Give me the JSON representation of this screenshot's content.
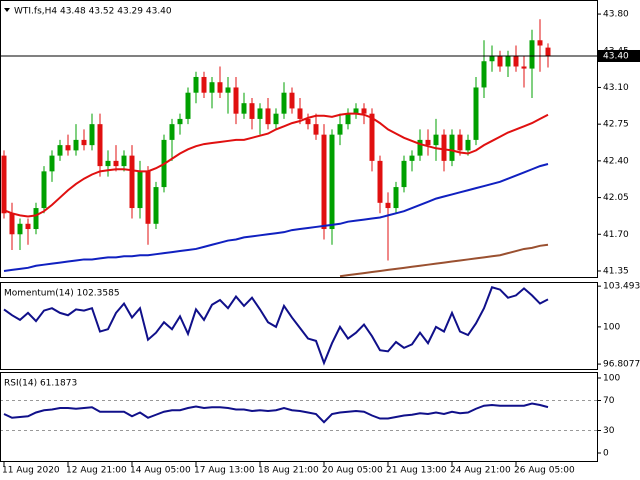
{
  "chart_data": [
    {
      "type": "candlestick",
      "title": "WTI.fs,H4  43.48 43.52 43.29 43.40",
      "up_color": "#00a000",
      "down_color": "#e01010",
      "open": [
        42.45,
        41.9,
        41.7,
        41.8,
        41.75,
        41.95,
        42.3,
        42.45,
        42.55,
        42.5,
        42.6,
        42.55,
        42.75,
        42.35,
        42.4,
        42.35,
        42.45,
        41.95,
        42.3,
        41.8,
        42.15,
        42.6,
        42.75,
        42.8,
        43.05,
        43.2,
        43.05,
        43.15,
        43.05,
        43.1,
        42.85,
        42.95,
        42.8,
        42.9,
        42.75,
        42.85,
        43.05,
        42.9,
        42.8,
        42.75,
        42.65,
        41.75,
        42.65,
        42.75,
        42.85,
        42.9,
        42.85,
        42.4,
        42.0,
        41.95,
        42.15,
        42.4,
        42.45,
        42.6,
        42.55,
        42.65,
        42.4,
        42.65,
        42.5,
        42.6,
        43.1,
        43.35,
        43.4,
        43.3,
        43.4,
        43.3,
        43.28,
        43.55,
        43.48
      ],
      "high": [
        42.5,
        42.0,
        41.85,
        41.85,
        42.0,
        42.35,
        42.5,
        42.6,
        42.65,
        42.75,
        42.7,
        42.85,
        42.85,
        42.5,
        42.55,
        42.5,
        42.55,
        42.4,
        42.35,
        42.2,
        42.65,
        42.8,
        42.85,
        43.1,
        43.25,
        43.25,
        43.2,
        43.3,
        43.2,
        43.2,
        43.05,
        43.0,
        42.95,
        43.0,
        42.9,
        43.15,
        43.1,
        43.0,
        42.85,
        42.85,
        42.75,
        42.7,
        42.85,
        42.9,
        42.95,
        42.95,
        42.9,
        42.45,
        42.1,
        42.2,
        42.45,
        42.5,
        42.7,
        42.7,
        42.8,
        42.7,
        42.7,
        42.7,
        42.65,
        43.2,
        43.55,
        43.5,
        43.45,
        43.45,
        43.5,
        43.4,
        43.65,
        43.75,
        43.52
      ],
      "low": [
        41.85,
        41.55,
        41.55,
        41.6,
        41.7,
        41.9,
        42.2,
        42.4,
        42.45,
        42.45,
        42.5,
        42.5,
        42.25,
        42.25,
        42.3,
        42.3,
        41.85,
        41.85,
        41.6,
        41.75,
        42.1,
        42.4,
        42.65,
        42.75,
        42.95,
        43.0,
        42.9,
        43.0,
        42.85,
        42.75,
        42.8,
        42.7,
        42.65,
        42.7,
        42.7,
        42.8,
        42.85,
        42.75,
        42.7,
        42.6,
        41.65,
        41.6,
        42.55,
        42.7,
        42.8,
        42.75,
        42.3,
        41.9,
        41.45,
        41.9,
        42.1,
        42.3,
        42.4,
        42.45,
        42.4,
        42.3,
        42.35,
        42.45,
        42.45,
        42.55,
        43.0,
        43.25,
        43.25,
        43.2,
        43.25,
        43.1,
        43.0,
        43.25,
        43.29
      ],
      "close": [
        41.9,
        41.7,
        41.8,
        41.75,
        41.95,
        42.3,
        42.45,
        42.55,
        42.5,
        42.6,
        42.55,
        42.75,
        42.35,
        42.4,
        42.35,
        42.45,
        41.95,
        42.3,
        41.8,
        42.15,
        42.6,
        42.75,
        42.8,
        43.05,
        43.2,
        43.05,
        43.15,
        43.05,
        43.1,
        42.85,
        42.95,
        42.8,
        42.9,
        42.75,
        42.85,
        43.05,
        42.9,
        42.8,
        42.75,
        42.65,
        41.75,
        42.65,
        42.75,
        42.85,
        42.9,
        42.85,
        42.4,
        42.0,
        41.95,
        42.15,
        42.4,
        42.45,
        42.6,
        42.55,
        42.65,
        42.4,
        42.65,
        42.5,
        42.6,
        43.1,
        43.35,
        43.4,
        43.3,
        43.4,
        43.3,
        43.28,
        43.55,
        43.5,
        43.4
      ],
      "series": [
        {
          "color": "#e01010",
          "values": [
            41.93,
            41.9,
            41.88,
            41.87,
            41.88,
            41.92,
            41.98,
            42.05,
            42.12,
            42.18,
            42.23,
            42.27,
            42.3,
            42.31,
            42.32,
            42.32,
            42.31,
            42.3,
            42.3,
            42.33,
            42.37,
            42.42,
            42.47,
            42.51,
            42.54,
            42.56,
            42.57,
            42.58,
            42.59,
            42.6,
            42.6,
            42.62,
            42.64,
            42.66,
            42.7,
            42.73,
            42.76,
            42.78,
            42.81,
            42.83,
            42.83,
            42.82,
            42.84,
            42.85,
            42.85,
            42.84,
            42.81,
            42.76,
            42.7,
            42.66,
            42.62,
            42.59,
            42.56,
            42.54,
            42.52,
            42.51,
            42.5,
            42.48,
            42.47,
            42.5,
            42.55,
            42.59,
            42.63,
            42.67,
            42.7,
            42.73,
            42.76,
            42.8,
            42.84
          ]
        },
        {
          "color": "#1020c0",
          "values": [
            41.35,
            41.36,
            41.37,
            41.38,
            41.4,
            41.41,
            41.42,
            41.43,
            41.44,
            41.45,
            41.46,
            41.46,
            41.47,
            41.48,
            41.48,
            41.49,
            41.49,
            41.5,
            41.5,
            41.51,
            41.52,
            41.53,
            41.54,
            41.55,
            41.56,
            41.58,
            41.6,
            41.62,
            41.64,
            41.65,
            41.67,
            41.68,
            41.69,
            41.7,
            41.71,
            41.72,
            41.74,
            41.75,
            41.76,
            41.77,
            41.78,
            41.79,
            41.8,
            41.82,
            41.83,
            41.84,
            41.85,
            41.86,
            41.88,
            41.9,
            41.92,
            41.95,
            41.98,
            42.01,
            42.04,
            42.06,
            42.08,
            42.1,
            42.12,
            42.14,
            42.16,
            42.18,
            42.2,
            42.23,
            42.26,
            42.29,
            42.32,
            42.35,
            42.37
          ]
        },
        {
          "color": "#9a5030",
          "values": [
            null,
            null,
            null,
            null,
            null,
            null,
            null,
            null,
            null,
            null,
            null,
            null,
            null,
            null,
            null,
            null,
            null,
            null,
            null,
            null,
            null,
            null,
            null,
            null,
            null,
            null,
            null,
            null,
            null,
            null,
            null,
            null,
            null,
            null,
            null,
            null,
            null,
            null,
            null,
            null,
            null,
            null,
            41.3,
            41.31,
            41.32,
            41.33,
            41.34,
            41.35,
            41.36,
            41.37,
            41.38,
            41.39,
            41.4,
            41.41,
            41.42,
            41.43,
            41.44,
            41.45,
            41.46,
            41.47,
            41.48,
            41.49,
            41.5,
            41.52,
            41.54,
            41.56,
            41.57,
            41.59,
            41.6
          ]
        }
      ],
      "price_line": {
        "value": 43.4,
        "label": "43.40",
        "color": "#000000"
      },
      "ylim": [
        41.283,
        43.934
      ],
      "yticks": [
        {
          "value": 43.8,
          "label": "43.80"
        },
        43.45,
        {
          "value": 43.1,
          "label": "43.10"
        },
        42.75,
        {
          "value": 42.4,
          "label": "42.40"
        },
        42.05,
        {
          "value": 41.7,
          "label": "41.70"
        },
        41.35
      ],
      "xticks": [
        {
          "value": 0,
          "label": "11 Aug 2020"
        },
        {
          "value": 8,
          "label": "12 Aug 21:00"
        },
        {
          "value": 16,
          "label": "14 Aug 05:00"
        },
        {
          "value": 24,
          "label": "17 Aug 13:00"
        },
        {
          "value": 32,
          "label": "18 Aug 21:00"
        },
        {
          "value": 40,
          "label": "20 Aug 05:00"
        },
        {
          "value": 48,
          "label": "21 Aug 13:00"
        },
        {
          "value": 56,
          "label": "24 Aug 21:00"
        },
        {
          "value": 64,
          "label": "26 Aug 05:00"
        }
      ]
    },
    {
      "type": "line",
      "title": "Momentum(14) 102.3585",
      "series": [
        {
          "color": "#10108a",
          "values": [
            101.5,
            101.0,
            100.6,
            101.2,
            100.5,
            101.4,
            101.6,
            101.2,
            101.0,
            101.5,
            101.4,
            101.6,
            99.6,
            99.8,
            101.2,
            102.0,
            100.8,
            101.6,
            98.9,
            99.5,
            100.4,
            99.8,
            100.9,
            99.4,
            101.5,
            100.6,
            101.9,
            102.3,
            101.6,
            102.6,
            101.8,
            102.5,
            101.5,
            100.4,
            100.0,
            101.8,
            100.8,
            99.9,
            99.0,
            98.8,
            96.9,
            98.6,
            100.0,
            99.0,
            99.5,
            100.2,
            99.2,
            98.0,
            97.9,
            98.7,
            98.2,
            98.5,
            99.5,
            98.6,
            100.0,
            99.6,
            101.2,
            99.6,
            99.3,
            100.3,
            101.6,
            103.4,
            103.2,
            102.5,
            102.7,
            103.3,
            102.7,
            102.0,
            102.36
          ]
        }
      ],
      "ylim": [
        96.3,
        103.85
      ],
      "yticks": [
        103.4936,
        100,
        96.8077
      ]
    },
    {
      "type": "line",
      "title": "RSI(14) 61.1873",
      "series": [
        {
          "color": "#10108a",
          "values": [
            52,
            47,
            48,
            49,
            54,
            57,
            58,
            60,
            60,
            59,
            60,
            61,
            55,
            55,
            55,
            55,
            49,
            54,
            47,
            51,
            55,
            57,
            57,
            60,
            62,
            60,
            61,
            61,
            60,
            58,
            58,
            56,
            57,
            56,
            57,
            60,
            57,
            56,
            54,
            52,
            41,
            52,
            54,
            55,
            56,
            55,
            50,
            46,
            46,
            48,
            50,
            51,
            53,
            52,
            54,
            52,
            55,
            53,
            54,
            59,
            63,
            64,
            63,
            63,
            63,
            63,
            66,
            64,
            61.19
          ]
        }
      ],
      "ylim": [
        -12,
        108
      ],
      "yticks": [
        100,
        70,
        30,
        0
      ],
      "levels": [
        70,
        30
      ]
    }
  ]
}
